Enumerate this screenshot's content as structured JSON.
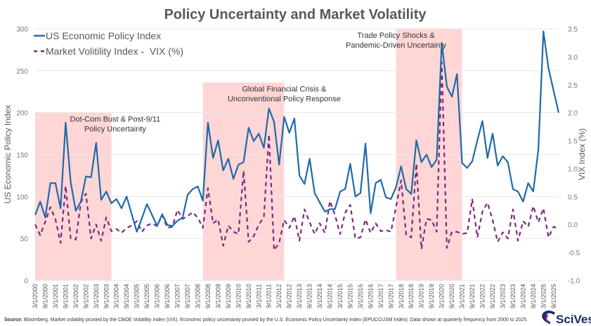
{
  "chart_data": {
    "type": "line",
    "title": "Policy Uncertainty and Market Volatility",
    "ylabel": "US Economic Policy Index",
    "y2label": "VIX Index (%)",
    "ylim": [
      0,
      300
    ],
    "yticks": [
      0,
      50,
      100,
      150,
      200,
      250,
      300
    ],
    "y2lim": [
      -1.0,
      3.5
    ],
    "y2ticks": [
      "-1.0",
      "-0.5",
      "0.0",
      "0.5",
      "1.0",
      "1.5",
      "2.0",
      "2.5",
      "3.0",
      "3.5"
    ],
    "grid": true,
    "legend_placement": "top-left",
    "categories": [
      "3/1/2000",
      "6/1/2000",
      "9/1/2000",
      "12/1/2000",
      "3/1/2001",
      "6/1/2001",
      "9/1/2001",
      "12/1/2001",
      "3/1/2002",
      "6/1/2002",
      "9/1/2002",
      "12/1/2002",
      "3/1/2003",
      "6/1/2003",
      "9/1/2003",
      "12/1/2003",
      "3/1/2004",
      "6/1/2004",
      "9/1/2004",
      "12/1/2004",
      "3/1/2005",
      "6/1/2005",
      "9/1/2005",
      "12/1/2005",
      "3/1/2006",
      "6/1/2006",
      "9/1/2006",
      "12/1/2006",
      "3/1/2007",
      "6/1/2007",
      "9/1/2007",
      "12/1/2007",
      "3/1/2008",
      "6/1/2008",
      "9/1/2008",
      "12/1/2008",
      "3/1/2009",
      "6/1/2009",
      "9/1/2009",
      "12/1/2009",
      "3/1/2010",
      "6/1/2010",
      "9/1/2010",
      "12/1/2010",
      "3/1/2011",
      "6/1/2011",
      "9/1/2011",
      "12/1/2011",
      "3/1/2012",
      "6/1/2012",
      "9/1/2012",
      "12/1/2012",
      "3/1/2013",
      "6/1/2013",
      "9/1/2013",
      "12/1/2013",
      "3/1/2014",
      "6/1/2014",
      "9/1/2014",
      "12/1/2014",
      "3/1/2015",
      "6/1/2015",
      "9/1/2015",
      "12/1/2015",
      "3/1/2016",
      "6/1/2016",
      "9/1/2016",
      "12/1/2016",
      "3/1/2017",
      "6/1/2017",
      "9/1/2017",
      "12/1/2017",
      "3/1/2018",
      "6/1/2018",
      "9/1/2018",
      "12/1/2018",
      "3/1/2019",
      "6/1/2019",
      "9/1/2019",
      "12/1/2019",
      "3/1/2020",
      "6/1/2020",
      "9/1/2020",
      "12/1/2020",
      "3/1/2021",
      "6/1/2021",
      "9/1/2021",
      "12/1/2021",
      "3/1/2022",
      "6/1/2022",
      "9/1/2022",
      "12/1/2022",
      "3/1/2023",
      "6/1/2023",
      "9/1/2023",
      "12/1/2023",
      "3/1/2024",
      "6/1/2024",
      "9/1/2024",
      "12/1/2024",
      "3/1/2025",
      "6/1/2025",
      "9/1/2025",
      "12/1/2025"
    ],
    "labeled_ticks": "3/1 and 9/1 of each year",
    "series": [
      {
        "name": "US Economic Policy Index",
        "axis": "left",
        "color": "#1f6aa8",
        "style": "solid",
        "values": [
          78,
          94,
          75,
          116,
          116,
          86,
          188,
          117,
          83,
          94,
          124,
          123,
          164,
          96,
          106,
          92,
          97,
          86,
          100,
          79,
          58,
          74,
          91,
          78,
          65,
          79,
          66,
          65,
          71,
          75,
          102,
          109,
          112,
          95,
          188,
          146,
          167,
          131,
          145,
          121,
          138,
          141,
          182,
          166,
          175,
          158,
          205,
          189,
          138,
          195,
          176,
          193,
          125,
          115,
          145,
          104,
          93,
          82,
          85,
          85,
          106,
          109,
          139,
          100,
          104,
          163,
          80,
          116,
          120,
          99,
          97,
          111,
          136,
          109,
          103,
          167,
          141,
          150,
          135,
          144,
          283,
          231,
          219,
          246,
          140,
          134,
          142,
          167,
          190,
          146,
          175,
          137,
          148,
          141,
          109,
          106,
          94,
          116,
          106,
          156,
          297,
          253,
          226,
          200
        ]
      },
      {
        "name": "Market Volitility Index -  VIX (%)",
        "axis": "right",
        "color": "#7b2a7e",
        "style": "dashed",
        "values": [
          0.0,
          -0.19,
          0.05,
          0.31,
          0.09,
          -0.33,
          0.69,
          -0.25,
          -0.27,
          0.4,
          0.55,
          -0.25,
          0.0,
          -0.29,
          0.13,
          -0.12,
          -0.08,
          -0.15,
          -0.06,
          -0.02,
          0.06,
          -0.13,
          -0.02,
          0.02,
          -0.03,
          0.17,
          -0.06,
          -0.04,
          0.26,
          0.1,
          0.15,
          0.22,
          0.12,
          -0.06,
          0.65,
          0.02,
          0.09,
          -0.38,
          -0.02,
          -0.13,
          -0.17,
          0.96,
          -0.31,
          -0.21,
          0.0,
          0.13,
          1.61,
          -0.46,
          -0.33,
          0.08,
          -0.06,
          0.15,
          -0.29,
          0.27,
          0.04,
          -0.17,
          0.02,
          -0.15,
          0.42,
          0.17,
          -0.17,
          0.21,
          0.35,
          -0.25,
          -0.23,
          0.09,
          -0.15,
          0.02,
          -0.12,
          -0.1,
          -0.13,
          0.31,
          0.79,
          -0.19,
          -0.23,
          1.09,
          -0.44,
          0.1,
          0.08,
          -0.13,
          2.9,
          -0.42,
          -0.13,
          -0.13,
          -0.17,
          -0.15,
          0.45,
          -0.23,
          0.23,
          0.39,
          0.08,
          -0.31,
          -0.14,
          -0.25,
          0.27,
          -0.29,
          0.06,
          -0.04,
          0.33,
          0.04,
          0.29,
          -0.23,
          -0.04,
          -0.08
        ]
      }
    ],
    "shaded_regions": [
      {
        "start": "3/1/2000",
        "end": "12/1/2003",
        "top": 200,
        "color": "#ffd6d6",
        "label_lines": [
          "Dot-Com Bust & Post-9/11",
          "Policy Uncertainty"
        ]
      },
      {
        "start": "6/1/2008",
        "end": "6/1/2012",
        "top": 236,
        "color": "#ffd6d6",
        "label_lines": [
          "Global Financial Crisis &",
          "Unconventional Policy Response"
        ]
      },
      {
        "start": "12/1/2017",
        "end": "3/1/2021",
        "top": 300,
        "color": "#ffd6d6",
        "label_lines": [
          "Trade Policy Shocks &",
          "Pandemic-Driven Uncertainty"
        ]
      }
    ]
  },
  "footer": {
    "source_label": "Source:",
    "source_text": " Bloomberg. Market volatility proxied by the CBOE Volatility Index (VIX). Economic policy uncertainty proxied by the U.S. Economic Policy Uncertainty Index (EPUCCUSM Index). Data shown at quarterly frequency from 2000 to 2025.",
    "logo_text": "SciVest"
  }
}
